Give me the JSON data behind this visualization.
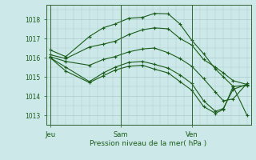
{
  "title": "",
  "xlabel": "Pression niveau de la mer( hPa )",
  "ylabel": "",
  "bg_color": "#cce8e8",
  "grid_color": "#aacccc",
  "line_color": "#1a5c1a",
  "ylim": [
    1012.5,
    1018.75
  ],
  "yticks": [
    1013,
    1014,
    1015,
    1016,
    1017,
    1018
  ],
  "xtick_positions": [
    0.0,
    0.36,
    0.72
  ],
  "xtick_labels": [
    "Jeu",
    "Sam",
    "Ven"
  ],
  "vline_positions": [
    0.0,
    0.36,
    0.72
  ],
  "series": [
    {
      "x": [
        0.0,
        0.08,
        0.2,
        0.27,
        0.33,
        0.4,
        0.47,
        0.53,
        0.6,
        0.66,
        0.72,
        0.78,
        0.84,
        0.88,
        0.93,
        1.0
      ],
      "y": [
        1016.4,
        1016.05,
        1017.1,
        1017.55,
        1017.75,
        1018.05,
        1018.1,
        1018.3,
        1018.28,
        1017.75,
        1016.9,
        1016.2,
        1015.4,
        1015.0,
        1014.5,
        1014.55
      ]
    },
    {
      "x": [
        0.0,
        0.08,
        0.2,
        0.27,
        0.33,
        0.4,
        0.47,
        0.53,
        0.6,
        0.66,
        0.72,
        0.78,
        0.84,
        0.88,
        0.93,
        1.0
      ],
      "y": [
        1016.15,
        1015.95,
        1016.55,
        1016.7,
        1016.85,
        1017.2,
        1017.45,
        1017.55,
        1017.5,
        1017.0,
        1016.65,
        1015.9,
        1015.5,
        1015.2,
        1014.8,
        1014.6
      ]
    },
    {
      "x": [
        0.0,
        0.08,
        0.2,
        0.27,
        0.33,
        0.4,
        0.47,
        0.53,
        0.6,
        0.66,
        0.72,
        0.78,
        0.84,
        0.88,
        0.93,
        1.0
      ],
      "y": [
        1016.05,
        1015.8,
        1015.6,
        1015.9,
        1016.05,
        1016.3,
        1016.45,
        1016.5,
        1016.25,
        1015.95,
        1015.55,
        1014.9,
        1014.2,
        1013.75,
        1013.85,
        1014.65
      ]
    },
    {
      "x": [
        0.0,
        0.08,
        0.2,
        0.27,
        0.33,
        0.4,
        0.47,
        0.53,
        0.6,
        0.66,
        0.72,
        0.78,
        0.84,
        0.88,
        0.93,
        1.0
      ],
      "y": [
        1016.0,
        1015.5,
        1014.75,
        1015.2,
        1015.5,
        1015.75,
        1015.8,
        1015.65,
        1015.45,
        1015.1,
        1014.65,
        1013.75,
        1013.2,
        1013.35,
        1014.35,
        1014.6
      ]
    },
    {
      "x": [
        0.0,
        0.08,
        0.2,
        0.27,
        0.33,
        0.4,
        0.47,
        0.53,
        0.6,
        0.66,
        0.72,
        0.78,
        0.84,
        0.88,
        0.93,
        1.0
      ],
      "y": [
        1016.0,
        1015.3,
        1014.7,
        1015.05,
        1015.35,
        1015.55,
        1015.6,
        1015.4,
        1015.2,
        1014.75,
        1014.3,
        1013.45,
        1013.1,
        1013.3,
        1014.5,
        1013.0
      ]
    }
  ]
}
